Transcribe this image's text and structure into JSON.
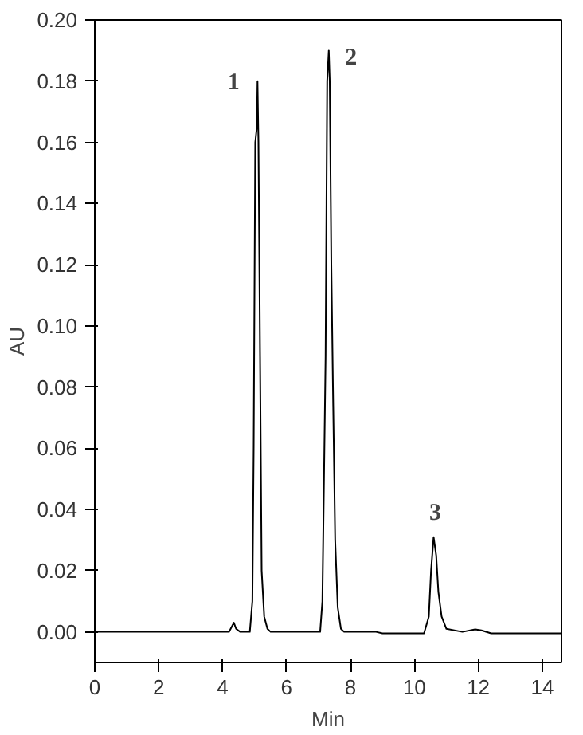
{
  "chart_data": {
    "type": "line",
    "xlabel": "Min",
    "ylabel": "AU",
    "xlim": [
      0,
      14.6
    ],
    "ylim": [
      -0.01,
      0.2
    ],
    "xticks": [
      0,
      2,
      4,
      6,
      8,
      10,
      12,
      14
    ],
    "yticks": [
      {
        "value": 0,
        "label": "0.00"
      },
      {
        "value": 0.02,
        "label": "0.02"
      },
      {
        "value": 0.04,
        "label": "0.04"
      },
      {
        "value": 0.06,
        "label": "0.06"
      },
      {
        "value": 0.08,
        "label": "0.08"
      },
      {
        "value": 0.1,
        "label": "0.10"
      },
      {
        "value": 0.12,
        "label": "0.12"
      },
      {
        "value": 0.14,
        "label": "0.14"
      },
      {
        "value": 0.16,
        "label": "0.16"
      },
      {
        "value": 0.18,
        "label": "0.18"
      },
      {
        "value": 0.2,
        "label": "0.20"
      }
    ],
    "grid": false,
    "marker": "none",
    "line_style": "solid",
    "series": [
      {
        "color": "#000000",
        "x": [
          0,
          4.2,
          4.3,
          4.35,
          4.42,
          4.55,
          4.85,
          4.93,
          4.97,
          5.02,
          5.07,
          5.09,
          5.12,
          5.17,
          5.22,
          5.3,
          5.4,
          5.5,
          7.05,
          7.12,
          7.17,
          7.22,
          7.27,
          7.32,
          7.35,
          7.4,
          7.45,
          7.52,
          7.6,
          7.7,
          7.8,
          8.8,
          9.0,
          10.3,
          10.45,
          10.52,
          10.6,
          10.68,
          10.75,
          10.85,
          11.0,
          11.5,
          11.9,
          12.1,
          12.4,
          14.6
        ],
        "values": [
          0,
          0,
          0.002,
          0.003,
          0.001,
          0,
          0,
          0.01,
          0.06,
          0.16,
          0.165,
          0.18,
          0.16,
          0.09,
          0.02,
          0.005,
          0.001,
          0,
          0,
          0.01,
          0.05,
          0.09,
          0.18,
          0.19,
          0.18,
          0.12,
          0.08,
          0.03,
          0.008,
          0.001,
          0,
          0,
          -0.0005,
          -0.0005,
          0.005,
          0.02,
          0.031,
          0.025,
          0.013,
          0.005,
          0.001,
          0,
          0.0008,
          0.0005,
          -0.0005,
          -0.0005
        ]
      }
    ],
    "annotations": [
      {
        "text": "1",
        "x": 5.09,
        "y": 0.18
      },
      {
        "text": "2",
        "x": 7.32,
        "y": 0.19
      },
      {
        "text": "3",
        "x": 10.6,
        "y": 0.031
      }
    ]
  }
}
